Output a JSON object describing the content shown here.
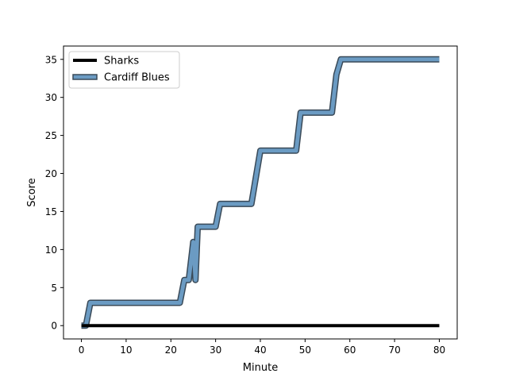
{
  "chart_data": {
    "type": "line",
    "title": "",
    "xlabel": "Minute",
    "ylabel": "Score",
    "xlim": [
      -4,
      84
    ],
    "ylim": [
      -1.75,
      36.75
    ],
    "x_ticks": [
      0,
      10,
      20,
      30,
      40,
      50,
      60,
      70,
      80
    ],
    "y_ticks": [
      0,
      5,
      10,
      15,
      20,
      25,
      30,
      35
    ],
    "grid": false,
    "legend_position": "top-left",
    "series": [
      {
        "name": "Sharks",
        "color": "#000000",
        "x": [
          0,
          80
        ],
        "y": [
          0,
          0
        ]
      },
      {
        "name": "Cardiff Blues",
        "color": "#6b9bc3",
        "edge_color": "#3a4a58",
        "x": [
          0,
          1,
          2,
          22,
          23,
          24,
          25,
          25.5,
          26,
          30,
          31,
          38,
          40,
          48,
          49,
          56,
          57,
          58,
          80
        ],
        "y": [
          0,
          0,
          3,
          3,
          6,
          6,
          11,
          6,
          13,
          13,
          16,
          16,
          23,
          23,
          28,
          28,
          33,
          35,
          35
        ]
      }
    ]
  }
}
